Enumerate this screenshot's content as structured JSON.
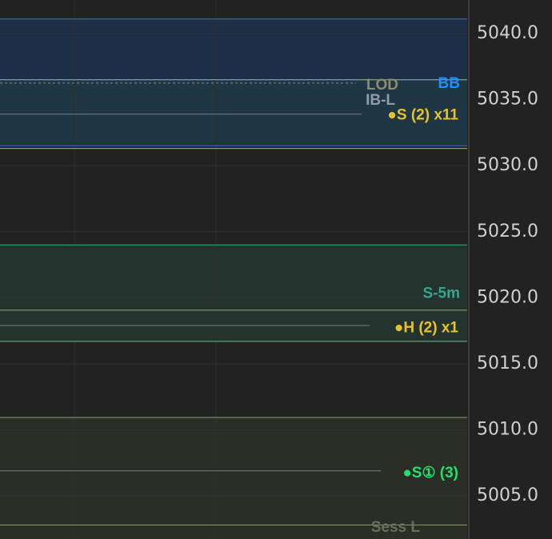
{
  "chart_data": {
    "type": "levels",
    "ylim": [
      5001.74,
      5042.54
    ],
    "yticks": [
      {
        "value": 5005,
        "label": "5005.0"
      },
      {
        "value": 5010,
        "label": "5010.0"
      },
      {
        "value": 5015,
        "label": "5015.0"
      },
      {
        "value": 5020,
        "label": "5020.0"
      },
      {
        "value": 5025,
        "label": "5025.0"
      },
      {
        "value": 5030,
        "label": "5030.0"
      },
      {
        "value": 5035,
        "label": "5035.0"
      },
      {
        "value": 5040,
        "label": "5040.0"
      }
    ],
    "zones": [
      {
        "top": 5041.1,
        "bottom": 5036.5,
        "color": "#1c2f47"
      },
      {
        "top": 5036.5,
        "bottom": 5031.5,
        "color": "#1f3644"
      },
      {
        "top": 5024.0,
        "bottom": 5016.7,
        "color": "#25332f"
      },
      {
        "top": 5010.9,
        "bottom": 5001.74,
        "color": "#2a2e27"
      }
    ],
    "levels": [
      {
        "value": 5041.1,
        "color": "#3f74c0"
      },
      {
        "value": 5036.5,
        "color": "#9ec27a"
      },
      {
        "value": 5036.25,
        "color": "#8f8c72",
        "dashed": true
      },
      {
        "value": 5033.9,
        "color": "#7c7c7c"
      },
      {
        "value": 5031.5,
        "color": "#3f74c0"
      },
      {
        "value": 5031.3,
        "color": "#9ec27a"
      },
      {
        "value": 5024.0,
        "color": "#2fa892"
      },
      {
        "value": 5019.06,
        "color": "#86b06a"
      },
      {
        "value": 5017.9,
        "color": "#7c7c7c"
      },
      {
        "value": 5016.7,
        "color": "#6dc07a"
      },
      {
        "value": 5010.94,
        "color": "#86a86a"
      },
      {
        "value": 5006.9,
        "color": "#7c7c7c"
      },
      {
        "value": 5002.8,
        "color": "#8a9a6a"
      }
    ],
    "annotations": [
      {
        "value": 5036.07,
        "text": "LOD",
        "color": "#8f8a6e"
      },
      {
        "value": 5036.19,
        "text": "BB",
        "color": "#1e8fff"
      },
      {
        "value": 5034.9,
        "text": "IB-L",
        "color": "#8f9cad"
      },
      {
        "value": 5033.8,
        "text": "●S (2) x11",
        "color": "#e8c22a"
      },
      {
        "value": 5020.3,
        "text": "S-5m",
        "color": "#2fa892"
      },
      {
        "value": 5017.7,
        "text": "●H (2) x1",
        "color": "#e8c22a"
      },
      {
        "value": 5006.7,
        "text": "●S① (3)",
        "color": "#22e06a"
      },
      {
        "value": 5002.6,
        "text": "Sess L",
        "color": "#6b6e58"
      }
    ]
  }
}
